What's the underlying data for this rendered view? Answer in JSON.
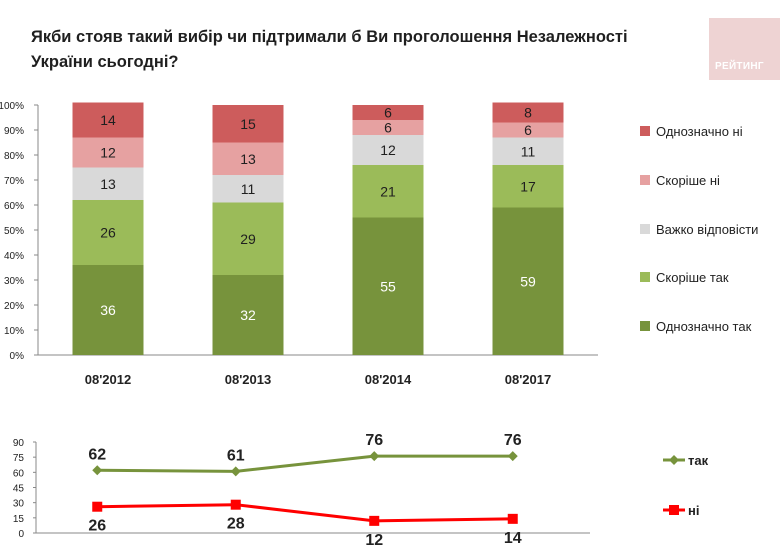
{
  "title": "Якби стояв такий вибір чи підтримали б Ви проголошення Незалежності України сьогодні?",
  "logo_text": "РЕЙТИНГ",
  "chart_data": [
    {
      "type": "bar",
      "stacked": true,
      "categories": [
        "08'2012",
        "08'2013",
        "08'2014",
        "08'2017"
      ],
      "ylim": [
        0,
        100
      ],
      "yticks": [
        "0%",
        "10%",
        "20%",
        "30%",
        "40%",
        "50%",
        "60%",
        "70%",
        "80%",
        "90%",
        "100%"
      ],
      "legend_position": "right",
      "series": [
        {
          "name": "Однозначно так",
          "values": [
            36,
            32,
            55,
            59
          ],
          "color": "#77933c"
        },
        {
          "name": "Скоріше так",
          "values": [
            26,
            29,
            21,
            17
          ],
          "color": "#9bbb59"
        },
        {
          "name": "Важко відповісти",
          "values": [
            13,
            11,
            12,
            11
          ],
          "color": "#d9d9d9"
        },
        {
          "name": "Скоріше ні",
          "values": [
            12,
            13,
            6,
            6
          ],
          "color": "#e6a1a1"
        },
        {
          "name": "Однозначно ні",
          "values": [
            14,
            15,
            6,
            8
          ],
          "color": "#cd5c5c"
        }
      ]
    },
    {
      "type": "line",
      "categories": [
        "08'2012",
        "08'2013",
        "08'2014",
        "08'2017"
      ],
      "ylim": [
        0,
        90
      ],
      "yticks": [
        "0",
        "15",
        "30",
        "45",
        "60",
        "75",
        "90"
      ],
      "legend_position": "right",
      "series": [
        {
          "name": "так",
          "values": [
            62,
            61,
            76,
            76
          ],
          "color": "#77933c"
        },
        {
          "name": "ні",
          "values": [
            26,
            28,
            12,
            14
          ],
          "color": "#ff0000"
        }
      ]
    }
  ]
}
